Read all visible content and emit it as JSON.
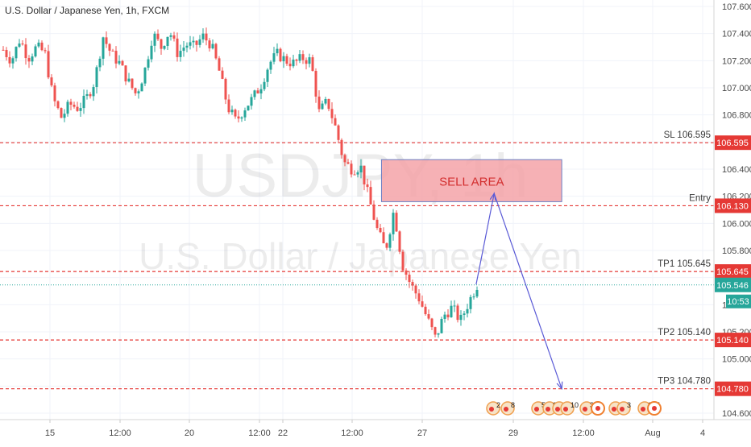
{
  "title": "U.S. Dollar / Japanese Yen, 1h, FXCM",
  "watermark": {
    "symbol": "USDJPY, 1h",
    "name": "U.S. Dollar / Japanese Yen"
  },
  "colors": {
    "bull": "#26a69a",
    "bear": "#ef5350",
    "level": "#e53935",
    "current": "#26a69a",
    "arrow": "#5a5ad6",
    "sell_area_fill": "#f4a3a8",
    "sell_area_text": "#d32f2f"
  },
  "chart_data": {
    "type": "candlestick",
    "title": "U.S. Dollar / Japanese Yen, 1h, FXCM",
    "y_axis": {
      "ticks": [
        "107.600",
        "107.400",
        "107.200",
        "107.000",
        "106.800",
        "106.600",
        "106.400",
        "106.200",
        "106.000",
        "105.800",
        "105.600",
        "105.400",
        "105.200",
        "105.000",
        "104.800",
        "104.600"
      ],
      "range": [
        104.55,
        107.65
      ]
    },
    "x_axis": {
      "ticks": [
        "15",
        "12:00",
        "20",
        "12:00",
        "22",
        "12:00",
        "27",
        "29",
        "12:00",
        "Aug",
        "4"
      ]
    },
    "price_path": [
      [
        "15",
        107.28
      ],
      [
        "15",
        107.2
      ],
      [
        "15",
        107.36
      ],
      [
        "15",
        107.22
      ],
      [
        "15",
        107.3
      ],
      [
        "15",
        107.26
      ],
      [
        "15",
        106.92
      ],
      [
        "15",
        106.78
      ],
      [
        "15",
        106.88
      ],
      [
        "12:00",
        106.85
      ],
      [
        "12:00",
        106.92
      ],
      [
        "12:00",
        107.05
      ],
      [
        "12:00",
        107.38
      ],
      [
        "12:00",
        107.25
      ],
      [
        "12:00",
        107.18
      ],
      [
        "12:00",
        107.05
      ],
      [
        "12:00",
        106.95
      ],
      [
        "20",
        107.12
      ],
      [
        "20",
        107.4
      ],
      [
        "20",
        107.3
      ],
      [
        "20",
        107.42
      ],
      [
        "20",
        107.25
      ],
      [
        "20",
        107.32
      ],
      [
        "20",
        107.3
      ],
      [
        "20",
        107.38
      ],
      [
        "12:00",
        107.32
      ],
      [
        "12:00",
        107.12
      ],
      [
        "12:00",
        106.86
      ],
      [
        "12:00",
        106.75
      ],
      [
        "12:00",
        106.85
      ],
      [
        "22",
        106.92
      ],
      [
        "22",
        107.02
      ],
      [
        "22",
        107.18
      ],
      [
        "22",
        107.25
      ],
      [
        "22",
        107.2
      ],
      [
        "22",
        107.18
      ],
      [
        "12:00",
        107.22
      ],
      [
        "12:00",
        107.2
      ],
      [
        "12:00",
        106.82
      ],
      [
        "12:00",
        106.9
      ],
      [
        "12:00",
        106.7
      ],
      [
        "12:00",
        106.45
      ],
      [
        "12:00",
        106.4
      ],
      [
        "27",
        106.42
      ],
      [
        "27",
        106.18
      ],
      [
        "27",
        105.95
      ],
      [
        "27",
        105.8
      ],
      [
        "27",
        106.1
      ],
      [
        "27",
        105.7
      ],
      [
        "27",
        105.55
      ],
      [
        "27",
        105.45
      ],
      [
        "27",
        105.3
      ],
      [
        "27",
        105.15
      ],
      [
        "27",
        105.32
      ],
      [
        "27",
        105.38
      ],
      [
        "27",
        105.28
      ],
      [
        "29",
        105.42
      ],
      [
        "29",
        105.546
      ]
    ],
    "levels": [
      {
        "label": "SL 106.595",
        "value": 106.595,
        "badge": "106.595"
      },
      {
        "label": "Entry",
        "value": 106.13,
        "badge": "106.130"
      },
      {
        "label": "TP1 105.645",
        "value": 105.645,
        "badge": "105.645"
      },
      {
        "label": "TP2 105.140",
        "value": 105.14,
        "badge": "105.140"
      },
      {
        "label": "TP3 104.780",
        "value": 104.78,
        "badge": "104.780"
      }
    ],
    "current_price": {
      "value": 105.546,
      "badge": "105.546",
      "countdown": "10:53"
    },
    "sell_area": {
      "label": "SELL AREA",
      "top": 106.47,
      "bottom": 106.16,
      "start": 0.508,
      "end": 0.748
    },
    "projection": [
      [
        105.55,
        0.634
      ],
      [
        106.22,
        0.658
      ],
      [
        104.78,
        0.748
      ]
    ],
    "events": [
      "2",
      "8",
      "5",
      "6",
      "2",
      "10",
      "333",
      "6",
      "3",
      "105"
    ]
  }
}
